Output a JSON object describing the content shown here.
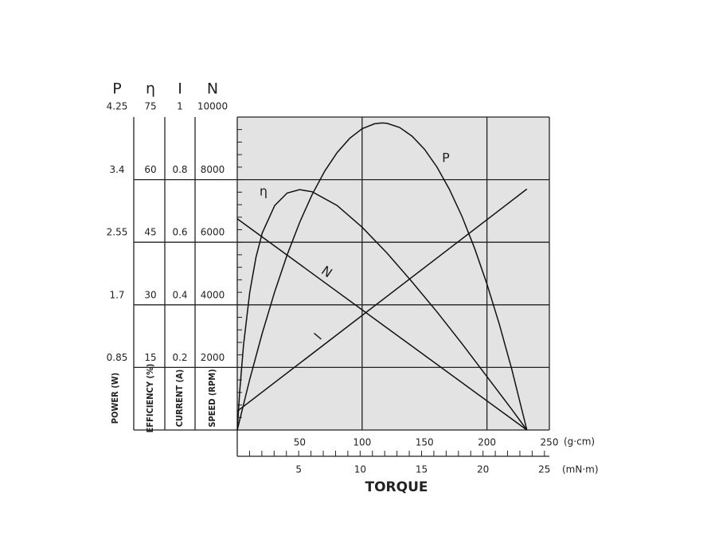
{
  "chart_data": {
    "type": "line",
    "xlabel": "TORQUE",
    "xunit": "(g·cm)",
    "x2unit": "(mN·m)",
    "xlim": [
      0,
      250
    ],
    "xticks": [
      50,
      100,
      150,
      200,
      250
    ],
    "xgrid": [
      100,
      200
    ],
    "x2lim": [
      0,
      25.4
    ],
    "x2ticks": [
      5,
      10,
      15,
      20,
      25
    ],
    "x2minorticks": [
      1,
      2,
      3,
      4,
      5,
      6,
      7,
      8,
      9,
      10,
      11,
      12,
      13,
      14,
      15,
      16,
      17,
      18,
      19,
      20,
      21,
      22,
      23,
      24,
      25
    ],
    "grid": true,
    "background": "#e3e3e3",
    "yaxes": [
      {
        "name": "P",
        "title": "POWER (W)",
        "lim": [
          0,
          4.25
        ],
        "ticks": [
          0.85,
          1.7,
          2.55,
          3.4,
          4.25
        ]
      },
      {
        "name": "η",
        "title": "EFFICIENCY (%)",
        "lim": [
          0,
          75
        ],
        "ticks": [
          15,
          30,
          45,
          60,
          75
        ]
      },
      {
        "name": "I",
        "title": "CURRENT (A)",
        "lim": [
          0,
          1
        ],
        "ticks": [
          0.2,
          0.4,
          0.6,
          0.8,
          1
        ]
      },
      {
        "name": "N",
        "title": "SPEED (RPM)",
        "lim": [
          0,
          10000
        ],
        "ticks": [
          2000,
          4000,
          6000,
          8000,
          10000
        ]
      }
    ],
    "series": [
      {
        "name": "P",
        "axis": "P",
        "color": "#111111",
        "x": [
          0,
          10,
          20,
          30,
          40,
          50,
          60,
          70,
          80,
          90,
          100,
          110,
          116,
          120,
          130,
          140,
          150,
          160,
          170,
          180,
          190,
          200,
          210,
          220,
          232
        ],
        "values": [
          0,
          0.688,
          1.314,
          1.878,
          2.38,
          2.82,
          3.198,
          3.514,
          3.768,
          3.96,
          4.091,
          4.159,
          4.17,
          4.165,
          4.109,
          3.991,
          3.812,
          3.57,
          3.266,
          2.901,
          2.473,
          1.983,
          1.432,
          0.818,
          0
        ]
      },
      {
        "name": "η",
        "axis": "η",
        "color": "#111111",
        "x": [
          0,
          2,
          5,
          10,
          15,
          20,
          30,
          40,
          50,
          60,
          80,
          100,
          120,
          140,
          160,
          180,
          200,
          220,
          232
        ],
        "values": [
          0,
          9.38,
          20.3,
          33,
          41.4,
          47.2,
          53.8,
          56.8,
          57.6,
          57.1,
          53.8,
          48.6,
          42.4,
          35.5,
          28.3,
          20.7,
          12.8,
          4.9,
          0
        ]
      },
      {
        "name": "N",
        "axis": "N",
        "color": "#111111",
        "x": [
          0,
          232
        ],
        "values": [
          6750,
          0
        ]
      },
      {
        "name": "I",
        "axis": "I",
        "color": "#111111",
        "x": [
          0,
          232
        ],
        "values": [
          0.06,
          0.77
        ]
      }
    ]
  }
}
